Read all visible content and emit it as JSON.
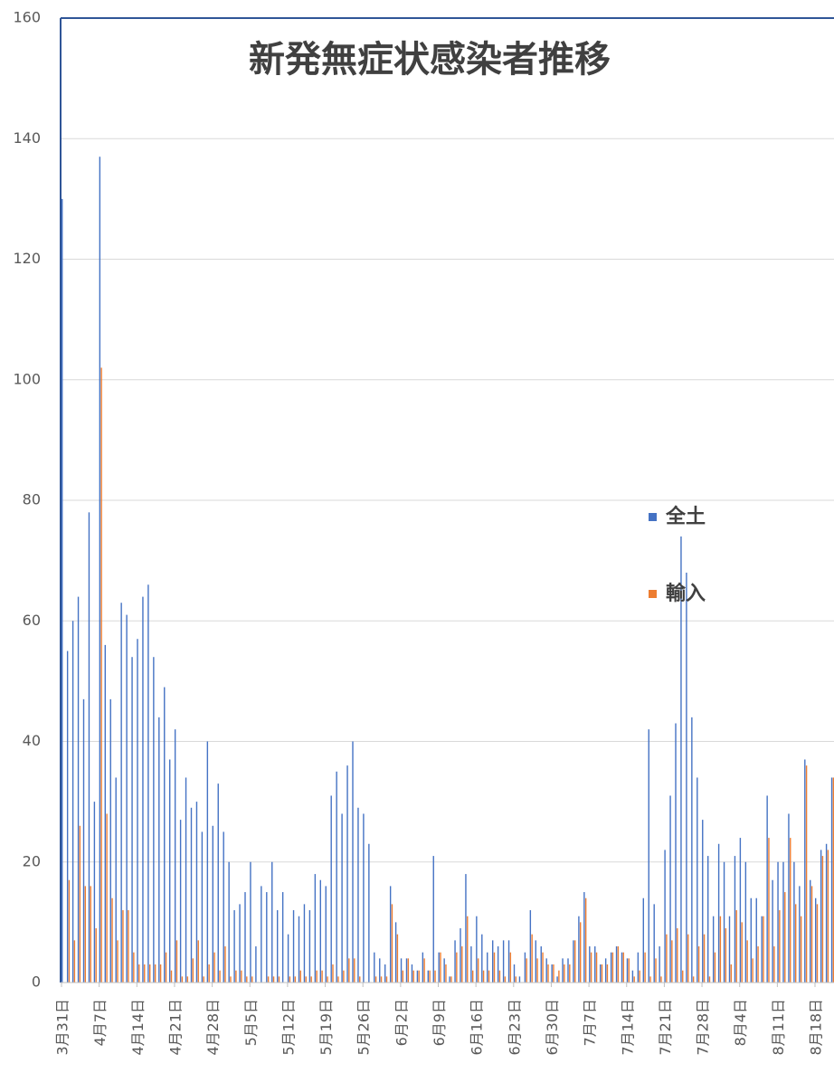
{
  "chart_data": {
    "type": "bar",
    "title": "新発無症状感染者推移",
    "categories": [
      "3月31日",
      null,
      null,
      null,
      null,
      null,
      null,
      "4月7日",
      null,
      null,
      null,
      null,
      null,
      null,
      "4月14日",
      null,
      null,
      null,
      null,
      null,
      null,
      "4月21日",
      null,
      null,
      null,
      null,
      null,
      null,
      "4月28日",
      null,
      null,
      null,
      null,
      null,
      null,
      "5月5日",
      null,
      null,
      null,
      null,
      null,
      null,
      "5月12日",
      null,
      null,
      null,
      null,
      null,
      null,
      "5月19日",
      null,
      null,
      null,
      null,
      null,
      null,
      "5月26日",
      null,
      null,
      null,
      null,
      null,
      null,
      "6月2日",
      null,
      null,
      null,
      null,
      null,
      null,
      "6月9日",
      null,
      null,
      null,
      null,
      null,
      null,
      "6月16日",
      null,
      null,
      null,
      null,
      null,
      null,
      "6月23日",
      null,
      null,
      null,
      null,
      null,
      null,
      "6月30日",
      null,
      null,
      null,
      null,
      null,
      null,
      "7月7日",
      null,
      null,
      null,
      null,
      null,
      null,
      "7月14日",
      null,
      null,
      null,
      null,
      null,
      null,
      "7月21日",
      null,
      null,
      null,
      null,
      null,
      null,
      "7月28日",
      null,
      null,
      null,
      null,
      null,
      null,
      "8月4日",
      null,
      null,
      null,
      null,
      null,
      null,
      "8月11日",
      null,
      null,
      null,
      null,
      null,
      null,
      "8月18日",
      null,
      null,
      null
    ],
    "series": [
      {
        "name": "全土",
        "color": "#4472c4",
        "values": [
          130,
          55,
          60,
          64,
          47,
          78,
          30,
          137,
          56,
          47,
          34,
          63,
          61,
          54,
          57,
          64,
          66,
          54,
          44,
          49,
          37,
          42,
          27,
          34,
          29,
          30,
          25,
          40,
          26,
          33,
          25,
          20,
          12,
          13,
          15,
          20,
          6,
          16,
          15,
          20,
          12,
          15,
          8,
          12,
          11,
          13,
          12,
          18,
          17,
          16,
          31,
          35,
          28,
          36,
          40,
          29,
          28,
          23,
          5,
          4,
          3,
          16,
          10,
          4,
          4,
          3,
          2,
          5,
          2,
          21,
          5,
          4,
          1,
          7,
          9,
          18,
          6,
          11,
          8,
          5,
          7,
          6,
          7,
          7,
          3,
          1,
          5,
          12,
          7,
          6,
          4,
          3,
          1,
          4,
          4,
          7,
          11,
          15,
          6,
          6,
          3,
          4,
          5,
          6,
          5,
          4,
          2,
          5,
          14,
          42,
          13,
          6,
          22,
          31,
          43,
          74,
          68,
          44,
          34,
          27,
          21,
          11,
          23,
          20,
          11,
          21,
          24,
          20,
          14,
          14,
          11,
          31,
          17,
          20,
          20,
          28,
          20,
          16,
          37,
          17,
          14,
          22,
          23,
          34
        ]
      },
      {
        "name": "輸入",
        "color": "#ed7d31",
        "values": [
          0,
          17,
          7,
          26,
          16,
          16,
          9,
          102,
          28,
          14,
          7,
          12,
          12,
          5,
          3,
          3,
          3,
          3,
          3,
          5,
          2,
          7,
          1,
          1,
          4,
          7,
          1,
          3,
          5,
          2,
          6,
          1,
          2,
          2,
          1,
          1,
          0,
          0,
          1,
          1,
          1,
          0,
          1,
          1,
          2,
          1,
          1,
          2,
          2,
          1,
          3,
          1,
          2,
          4,
          4,
          1,
          0,
          0,
          1,
          1,
          1,
          13,
          8,
          2,
          4,
          2,
          2,
          4,
          2,
          2,
          5,
          3,
          1,
          5,
          6,
          11,
          2,
          4,
          2,
          2,
          5,
          2,
          1,
          5,
          1,
          0,
          4,
          8,
          4,
          5,
          3,
          3,
          2,
          3,
          3,
          7,
          10,
          14,
          5,
          5,
          3,
          3,
          5,
          6,
          5,
          4,
          1,
          2,
          5,
          1,
          4,
          1,
          8,
          7,
          9,
          2,
          8,
          1,
          6,
          8,
          1,
          5,
          11,
          9,
          3,
          12,
          10,
          7,
          4,
          6,
          11,
          24,
          6,
          12,
          15,
          24,
          13,
          11,
          36,
          16,
          13,
          21,
          22,
          34
        ]
      }
    ],
    "ylim": [
      0,
      160
    ],
    "yticks": [
      0,
      20,
      40,
      60,
      80,
      100,
      120,
      140,
      160
    ],
    "grid": true
  }
}
